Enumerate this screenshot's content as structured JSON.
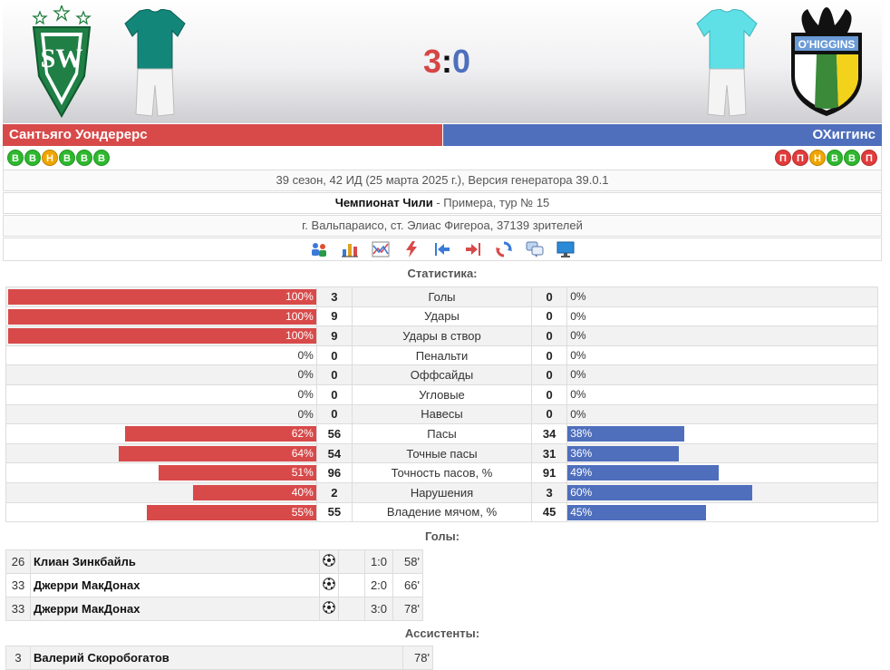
{
  "score": {
    "home": "3",
    "sep": ":",
    "away": "0"
  },
  "colors": {
    "home": "#d84a4a",
    "away": "#4f6fbd",
    "win": "#2eb82e",
    "draw": "#f0a500",
    "loss": "#e23b3b"
  },
  "home_team": {
    "name": "Сантьяго Уондерерс",
    "form": [
      "В",
      "В",
      "Н",
      "В",
      "В",
      "В"
    ],
    "crest_text": "SW"
  },
  "away_team": {
    "name": "ОХиггинс",
    "form": [
      "П",
      "П",
      "Н",
      "В",
      "В",
      "П"
    ],
    "crest_text": "O'HIGGINS"
  },
  "info": {
    "line1": "39 сезон, 42 ИД (25 марта 2025 г.), Версия генератора 39.0.1",
    "competition": "Чемпионат Чили",
    "stage": " - Примера, тур № 15",
    "venue": "г. Вальпараисо, ст. Элиас Фигероа, 37139 зрителей"
  },
  "toolbar_icons": [
    "lineup-icon",
    "bar-chart-icon",
    "tactics-chart-icon",
    "flash-icon",
    "arrow-left-icon",
    "arrow-right-icon",
    "refresh-icon",
    "comments-icon",
    "monitor-icon"
  ],
  "stats_title": "Статистика:",
  "stats": [
    {
      "label": "Голы",
      "home": "3",
      "away": "0",
      "home_pct": "100%",
      "away_pct": "0%",
      "home_frac": 1.0,
      "away_frac": 0
    },
    {
      "label": "Удары",
      "home": "9",
      "away": "0",
      "home_pct": "100%",
      "away_pct": "0%",
      "home_frac": 1.0,
      "away_frac": 0
    },
    {
      "label": "Удары в створ",
      "home": "9",
      "away": "0",
      "home_pct": "100%",
      "away_pct": "0%",
      "home_frac": 1.0,
      "away_frac": 0
    },
    {
      "label": "Пенальти",
      "home": "0",
      "away": "0",
      "home_pct": "0%",
      "away_pct": "0%",
      "home_frac": 0,
      "away_frac": 0
    },
    {
      "label": "Оффсайды",
      "home": "0",
      "away": "0",
      "home_pct": "0%",
      "away_pct": "0%",
      "home_frac": 0,
      "away_frac": 0
    },
    {
      "label": "Угловые",
      "home": "0",
      "away": "0",
      "home_pct": "0%",
      "away_pct": "0%",
      "home_frac": 0,
      "away_frac": 0
    },
    {
      "label": "Навесы",
      "home": "0",
      "away": "0",
      "home_pct": "0%",
      "away_pct": "0%",
      "home_frac": 0,
      "away_frac": 0
    },
    {
      "label": "Пасы",
      "home": "56",
      "away": "34",
      "home_pct": "62%",
      "away_pct": "38%",
      "home_frac": 0.62,
      "away_frac": 0.38
    },
    {
      "label": "Точные пасы",
      "home": "54",
      "away": "31",
      "home_pct": "64%",
      "away_pct": "36%",
      "home_frac": 0.64,
      "away_frac": 0.36
    },
    {
      "label": "Точность пасов, %",
      "home": "96",
      "away": "91",
      "home_pct": "51%",
      "away_pct": "49%",
      "home_frac": 0.51,
      "away_frac": 0.49
    },
    {
      "label": "Нарушения",
      "home": "2",
      "away": "3",
      "home_pct": "40%",
      "away_pct": "60%",
      "home_frac": 0.4,
      "away_frac": 0.6
    },
    {
      "label": "Владение мячом, %",
      "home": "55",
      "away": "45",
      "home_pct": "55%",
      "away_pct": "45%",
      "home_frac": 0.55,
      "away_frac": 0.45
    }
  ],
  "goals_title": "Голы:",
  "goals": [
    {
      "num": "26",
      "player": "Клиан Зинкбайль",
      "score": "1:0",
      "minute": "58'"
    },
    {
      "num": "33",
      "player": "Джерри МакДонах",
      "score": "2:0",
      "minute": "66'"
    },
    {
      "num": "33",
      "player": "Джерри МакДонах",
      "score": "3:0",
      "minute": "78'"
    }
  ],
  "assists_title": "Ассистенты:",
  "assists": [
    {
      "num": "3",
      "player": "Валерий Скоробогатов",
      "minute": "78'"
    }
  ]
}
